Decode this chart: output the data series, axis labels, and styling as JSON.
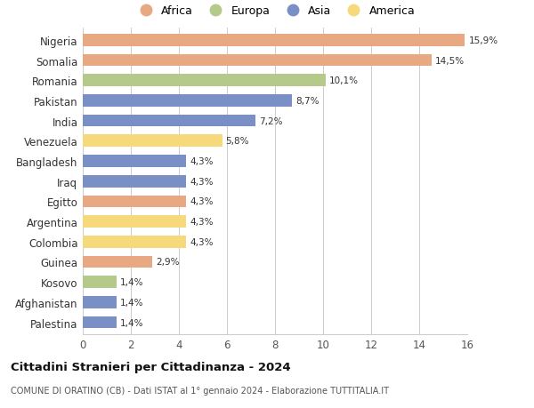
{
  "countries": [
    "Nigeria",
    "Somalia",
    "Romania",
    "Pakistan",
    "India",
    "Venezuela",
    "Bangladesh",
    "Iraq",
    "Egitto",
    "Argentina",
    "Colombia",
    "Guinea",
    "Kosovo",
    "Afghanistan",
    "Palestina"
  ],
  "values": [
    15.9,
    14.5,
    10.1,
    8.7,
    7.2,
    5.8,
    4.3,
    4.3,
    4.3,
    4.3,
    4.3,
    2.9,
    1.4,
    1.4,
    1.4
  ],
  "labels": [
    "15,9%",
    "14,5%",
    "10,1%",
    "8,7%",
    "7,2%",
    "5,8%",
    "4,3%",
    "4,3%",
    "4,3%",
    "4,3%",
    "4,3%",
    "2,9%",
    "1,4%",
    "1,4%",
    "1,4%"
  ],
  "continents": [
    "Africa",
    "Africa",
    "Europa",
    "Asia",
    "Asia",
    "America",
    "Asia",
    "Asia",
    "Africa",
    "America",
    "America",
    "Africa",
    "Europa",
    "Asia",
    "Asia"
  ],
  "colors": {
    "Africa": "#E8A882",
    "Europa": "#B5C98A",
    "Asia": "#7B8FC7",
    "America": "#F5D97A"
  },
  "legend_order": [
    "Africa",
    "Europa",
    "Asia",
    "America"
  ],
  "xlim": [
    0,
    16
  ],
  "xticks": [
    0,
    2,
    4,
    6,
    8,
    10,
    12,
    14,
    16
  ],
  "title": "Cittadini Stranieri per Cittadinanza - 2024",
  "subtitle": "COMUNE DI ORATINO (CB) - Dati ISTAT al 1° gennaio 2024 - Elaborazione TUTTITALIA.IT",
  "background_color": "#ffffff",
  "grid_color": "#cccccc"
}
